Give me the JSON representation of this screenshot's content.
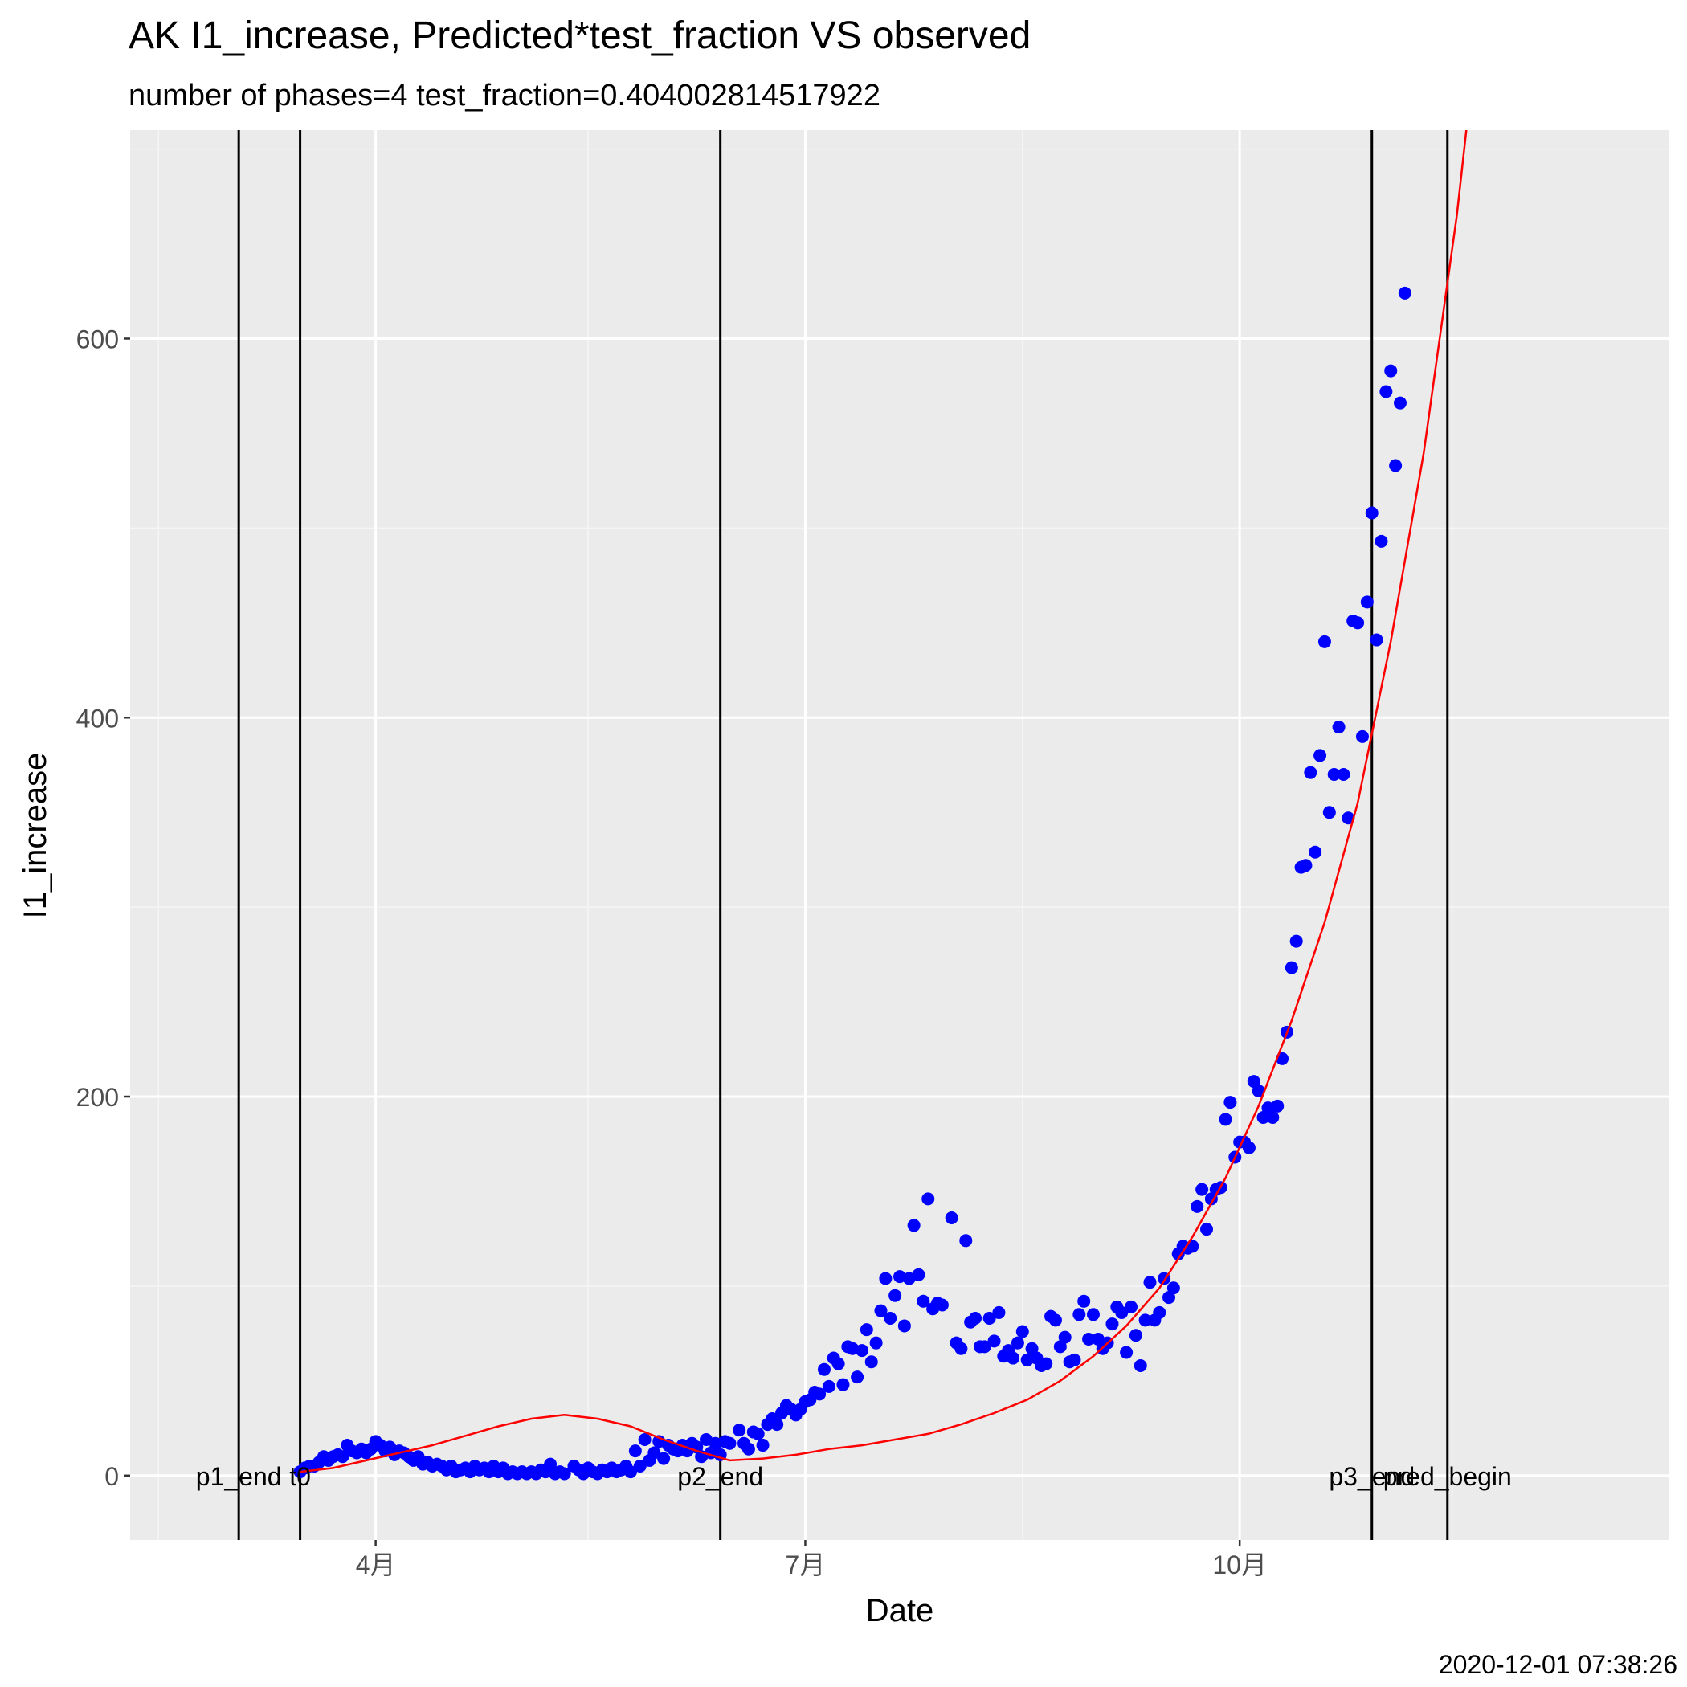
{
  "chart_data": {
    "type": "scatter",
    "title": "AK I1_increase, Predicted*test_fraction VS observed",
    "subtitle": "number of phases=4   test_fraction=0.404002814517922",
    "xlabel": "Date",
    "ylabel": "I1_increase",
    "caption": "2020-12-01 07:38:26",
    "x_range": [
      "2020-02-09",
      "2020-12-31"
    ],
    "ylim": [
      -34,
      710
    ],
    "x_ticks": [
      {
        "date": "2020-04-01",
        "label": "4月"
      },
      {
        "date": "2020-07-01",
        "label": "7月"
      },
      {
        "date": "2020-10-01",
        "label": "10月"
      }
    ],
    "y_ticks": [
      0,
      200,
      400,
      600
    ],
    "grid": true,
    "phase_lines": [
      {
        "date": "2020-03-03",
        "label": "p1_end"
      },
      {
        "date": "2020-03-16",
        "label": "t0"
      },
      {
        "date": "2020-06-13",
        "label": "p2_end"
      },
      {
        "date": "2020-10-29",
        "label": "p3_end"
      },
      {
        "date": "2020-11-14",
        "label": "pred_begin"
      }
    ],
    "series": [
      {
        "type": "scatter",
        "color": "#0000FF",
        "points": [
          [
            "2020-03-16",
            2
          ],
          [
            "2020-03-17",
            4
          ],
          [
            "2020-03-18",
            5
          ],
          [
            "2020-03-19",
            5
          ],
          [
            "2020-03-20",
            7
          ],
          [
            "2020-03-21",
            10
          ],
          [
            "2020-03-22",
            8
          ],
          [
            "2020-03-23",
            10
          ],
          [
            "2020-03-24",
            11
          ],
          [
            "2020-03-25",
            10
          ],
          [
            "2020-03-26",
            16
          ],
          [
            "2020-03-27",
            13
          ],
          [
            "2020-03-28",
            12
          ],
          [
            "2020-03-29",
            14
          ],
          [
            "2020-03-30",
            12
          ],
          [
            "2020-03-31",
            14
          ],
          [
            "2020-04-01",
            18
          ],
          [
            "2020-04-02",
            16
          ],
          [
            "2020-04-03",
            13
          ],
          [
            "2020-04-04",
            15
          ],
          [
            "2020-04-05",
            11
          ],
          [
            "2020-04-06",
            13
          ],
          [
            "2020-04-07",
            12
          ],
          [
            "2020-04-08",
            10
          ],
          [
            "2020-04-09",
            8
          ],
          [
            "2020-04-10",
            10
          ],
          [
            "2020-04-11",
            6
          ],
          [
            "2020-04-12",
            7
          ],
          [
            "2020-04-13",
            5
          ],
          [
            "2020-04-14",
            6
          ],
          [
            "2020-04-15",
            5
          ],
          [
            "2020-04-16",
            3
          ],
          [
            "2020-04-17",
            5
          ],
          [
            "2020-04-18",
            2
          ],
          [
            "2020-04-19",
            3
          ],
          [
            "2020-04-20",
            4
          ],
          [
            "2020-04-21",
            2
          ],
          [
            "2020-04-22",
            5
          ],
          [
            "2020-04-23",
            3
          ],
          [
            "2020-04-24",
            4
          ],
          [
            "2020-04-25",
            2
          ],
          [
            "2020-04-26",
            5
          ],
          [
            "2020-04-27",
            2
          ],
          [
            "2020-04-28",
            4
          ],
          [
            "2020-04-29",
            1
          ],
          [
            "2020-04-30",
            2
          ],
          [
            "2020-05-01",
            1
          ],
          [
            "2020-05-02",
            2
          ],
          [
            "2020-05-03",
            1
          ],
          [
            "2020-05-04",
            2
          ],
          [
            "2020-05-05",
            1
          ],
          [
            "2020-05-06",
            3
          ],
          [
            "2020-05-07",
            2
          ],
          [
            "2020-05-08",
            6
          ],
          [
            "2020-05-09",
            1
          ],
          [
            "2020-05-10",
            2
          ],
          [
            "2020-05-11",
            1
          ],
          [
            "2020-05-13",
            5
          ],
          [
            "2020-05-14",
            3
          ],
          [
            "2020-05-15",
            1
          ],
          [
            "2020-05-16",
            4
          ],
          [
            "2020-05-17",
            2
          ],
          [
            "2020-05-18",
            1
          ],
          [
            "2020-05-19",
            3
          ],
          [
            "2020-05-20",
            2
          ],
          [
            "2020-05-21",
            4
          ],
          [
            "2020-05-22",
            2
          ],
          [
            "2020-05-23",
            3
          ],
          [
            "2020-05-24",
            5
          ],
          [
            "2020-05-25",
            2
          ],
          [
            "2020-05-26",
            13
          ],
          [
            "2020-05-27",
            5
          ],
          [
            "2020-05-28",
            19
          ],
          [
            "2020-05-29",
            8
          ],
          [
            "2020-05-30",
            12
          ],
          [
            "2020-05-31",
            18
          ],
          [
            "2020-06-01",
            9
          ],
          [
            "2020-06-02",
            16
          ],
          [
            "2020-06-03",
            14
          ],
          [
            "2020-06-04",
            13
          ],
          [
            "2020-06-05",
            16
          ],
          [
            "2020-06-06",
            13
          ],
          [
            "2020-06-07",
            17
          ],
          [
            "2020-06-08",
            15
          ],
          [
            "2020-06-09",
            10
          ],
          [
            "2020-06-10",
            19
          ],
          [
            "2020-06-11",
            12
          ],
          [
            "2020-06-12",
            17
          ],
          [
            "2020-06-13",
            11
          ],
          [
            "2020-06-14",
            18
          ],
          [
            "2020-06-15",
            17
          ],
          [
            "2020-06-17",
            24
          ],
          [
            "2020-06-18",
            17
          ],
          [
            "2020-06-19",
            14
          ],
          [
            "2020-06-20",
            23
          ],
          [
            "2020-06-21",
            22
          ],
          [
            "2020-06-22",
            16
          ],
          [
            "2020-06-23",
            27
          ],
          [
            "2020-06-24",
            30
          ],
          [
            "2020-06-25",
            27
          ],
          [
            "2020-06-26",
            33
          ],
          [
            "2020-06-27",
            37
          ],
          [
            "2020-06-28",
            35
          ],
          [
            "2020-06-29",
            32
          ],
          [
            "2020-06-30",
            35
          ],
          [
            "2020-07-01",
            39
          ],
          [
            "2020-07-02",
            40
          ],
          [
            "2020-07-03",
            44
          ],
          [
            "2020-07-04",
            43
          ],
          [
            "2020-07-05",
            56
          ],
          [
            "2020-07-06",
            47
          ],
          [
            "2020-07-07",
            62
          ],
          [
            "2020-07-08",
            59
          ],
          [
            "2020-07-09",
            48
          ],
          [
            "2020-07-10",
            68
          ],
          [
            "2020-07-11",
            67
          ],
          [
            "2020-07-12",
            52
          ],
          [
            "2020-07-13",
            66
          ],
          [
            "2020-07-14",
            77
          ],
          [
            "2020-07-15",
            60
          ],
          [
            "2020-07-16",
            70
          ],
          [
            "2020-07-17",
            87
          ],
          [
            "2020-07-18",
            104
          ],
          [
            "2020-07-19",
            83
          ],
          [
            "2020-07-20",
            95
          ],
          [
            "2020-07-21",
            105
          ],
          [
            "2020-07-22",
            79
          ],
          [
            "2020-07-23",
            104
          ],
          [
            "2020-07-24",
            132
          ],
          [
            "2020-07-25",
            106
          ],
          [
            "2020-07-26",
            92
          ],
          [
            "2020-07-27",
            146
          ],
          [
            "2020-07-28",
            88
          ],
          [
            "2020-07-29",
            91
          ],
          [
            "2020-07-30",
            90
          ],
          [
            "2020-08-01",
            136
          ],
          [
            "2020-08-02",
            70
          ],
          [
            "2020-08-03",
            67
          ],
          [
            "2020-08-04",
            124
          ],
          [
            "2020-08-05",
            81
          ],
          [
            "2020-08-06",
            83
          ],
          [
            "2020-08-07",
            68
          ],
          [
            "2020-08-08",
            68
          ],
          [
            "2020-08-09",
            83
          ],
          [
            "2020-08-10",
            71
          ],
          [
            "2020-08-11",
            86
          ],
          [
            "2020-08-12",
            63
          ],
          [
            "2020-08-13",
            66
          ],
          [
            "2020-08-14",
            62
          ],
          [
            "2020-08-15",
            70
          ],
          [
            "2020-08-16",
            76
          ],
          [
            "2020-08-17",
            61
          ],
          [
            "2020-08-18",
            67
          ],
          [
            "2020-08-19",
            62
          ],
          [
            "2020-08-20",
            58
          ],
          [
            "2020-08-21",
            59
          ],
          [
            "2020-08-22",
            84
          ],
          [
            "2020-08-23",
            82
          ],
          [
            "2020-08-24",
            68
          ],
          [
            "2020-08-25",
            73
          ],
          [
            "2020-08-26",
            60
          ],
          [
            "2020-08-27",
            61
          ],
          [
            "2020-08-28",
            85
          ],
          [
            "2020-08-29",
            92
          ],
          [
            "2020-08-30",
            72
          ],
          [
            "2020-08-31",
            85
          ],
          [
            "2020-09-01",
            72
          ],
          [
            "2020-09-02",
            67
          ],
          [
            "2020-09-03",
            70
          ],
          [
            "2020-09-04",
            80
          ],
          [
            "2020-09-05",
            89
          ],
          [
            "2020-09-06",
            86
          ],
          [
            "2020-09-07",
            65
          ],
          [
            "2020-09-08",
            89
          ],
          [
            "2020-09-09",
            74
          ],
          [
            "2020-09-10",
            58
          ],
          [
            "2020-09-11",
            82
          ],
          [
            "2020-09-12",
            102
          ],
          [
            "2020-09-13",
            82
          ],
          [
            "2020-09-14",
            86
          ],
          [
            "2020-09-15",
            104
          ],
          [
            "2020-09-16",
            94
          ],
          [
            "2020-09-17",
            99
          ],
          [
            "2020-09-18",
            117
          ],
          [
            "2020-09-19",
            121
          ],
          [
            "2020-09-20",
            120
          ],
          [
            "2020-09-21",
            121
          ],
          [
            "2020-09-22",
            142
          ],
          [
            "2020-09-23",
            151
          ],
          [
            "2020-09-24",
            130
          ],
          [
            "2020-09-25",
            146
          ],
          [
            "2020-09-26",
            151
          ],
          [
            "2020-09-27",
            152
          ],
          [
            "2020-09-28",
            188
          ],
          [
            "2020-09-29",
            197
          ],
          [
            "2020-09-30",
            168
          ],
          [
            "2020-10-01",
            176
          ],
          [
            "2020-10-02",
            176
          ],
          [
            "2020-10-03",
            173
          ],
          [
            "2020-10-04",
            208
          ],
          [
            "2020-10-05",
            203
          ],
          [
            "2020-10-06",
            189
          ],
          [
            "2020-10-07",
            194
          ],
          [
            "2020-10-08",
            189
          ],
          [
            "2020-10-09",
            195
          ],
          [
            "2020-10-10",
            220
          ],
          [
            "2020-10-11",
            234
          ],
          [
            "2020-10-12",
            268
          ],
          [
            "2020-10-13",
            282
          ],
          [
            "2020-10-14",
            321
          ],
          [
            "2020-10-15",
            322
          ],
          [
            "2020-10-16",
            371
          ],
          [
            "2020-10-17",
            329
          ],
          [
            "2020-10-18",
            380
          ],
          [
            "2020-10-19",
            440
          ],
          [
            "2020-10-20",
            350
          ],
          [
            "2020-10-21",
            370
          ],
          [
            "2020-10-22",
            395
          ],
          [
            "2020-10-23",
            370
          ],
          [
            "2020-10-24",
            347
          ],
          [
            "2020-10-25",
            451
          ],
          [
            "2020-10-26",
            450
          ],
          [
            "2020-10-27",
            390
          ],
          [
            "2020-10-28",
            461
          ],
          [
            "2020-10-29",
            508
          ],
          [
            "2020-10-30",
            441
          ],
          [
            "2020-10-31",
            493
          ],
          [
            "2020-11-01",
            572
          ],
          [
            "2020-11-02",
            583
          ],
          [
            "2020-11-03",
            533
          ],
          [
            "2020-11-04",
            566
          ],
          [
            "2020-11-05",
            624
          ]
        ]
      },
      {
        "type": "line",
        "color": "#FF0000",
        "points": [
          [
            "2020-03-16",
            2
          ],
          [
            "2020-03-23",
            4
          ],
          [
            "2020-03-30",
            8
          ],
          [
            "2020-04-06",
            12
          ],
          [
            "2020-04-13",
            16
          ],
          [
            "2020-04-20",
            21
          ],
          [
            "2020-04-27",
            26
          ],
          [
            "2020-05-04",
            30
          ],
          [
            "2020-05-11",
            32
          ],
          [
            "2020-05-18",
            30
          ],
          [
            "2020-05-25",
            26
          ],
          [
            "2020-06-01",
            19
          ],
          [
            "2020-06-08",
            13
          ],
          [
            "2020-06-15",
            8
          ],
          [
            "2020-06-22",
            9
          ],
          [
            "2020-06-29",
            11
          ],
          [
            "2020-07-06",
            14
          ],
          [
            "2020-07-13",
            16
          ],
          [
            "2020-07-20",
            19
          ],
          [
            "2020-07-27",
            22
          ],
          [
            "2020-08-03",
            27
          ],
          [
            "2020-08-10",
            33
          ],
          [
            "2020-08-17",
            40
          ],
          [
            "2020-08-24",
            50
          ],
          [
            "2020-08-31",
            63
          ],
          [
            "2020-09-07",
            79
          ],
          [
            "2020-09-14",
            99
          ],
          [
            "2020-09-21",
            126
          ],
          [
            "2020-09-28",
            157
          ],
          [
            "2020-10-05",
            195
          ],
          [
            "2020-10-12",
            240
          ],
          [
            "2020-10-19",
            292
          ],
          [
            "2020-10-26",
            355
          ],
          [
            "2020-11-02",
            440
          ],
          [
            "2020-11-09",
            540
          ],
          [
            "2020-11-16",
            665
          ],
          [
            "2020-11-18",
            710
          ]
        ]
      }
    ]
  }
}
